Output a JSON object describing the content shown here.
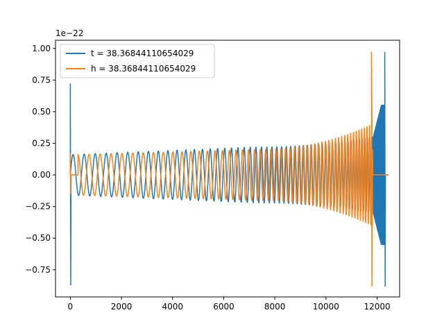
{
  "chart_data": {
    "type": "line",
    "title": "",
    "xlabel": "",
    "ylabel": "",
    "offset_text": "1e−22",
    "xlim": [
      -580,
      12880
    ],
    "ylim": [
      -0.965,
      1.065
    ],
    "x_ticks": [
      0,
      2000,
      4000,
      6000,
      8000,
      10000,
      12000
    ],
    "x_tick_labels": [
      "0",
      "2000",
      "4000",
      "6000",
      "8000",
      "10000",
      "12000"
    ],
    "y_ticks": [
      -0.75,
      -0.5,
      -0.25,
      0.0,
      0.25,
      0.5,
      0.75,
      1.0
    ],
    "y_tick_labels": [
      "−0.75",
      "−0.50",
      "−0.25",
      "0.00",
      "0.25",
      "0.50",
      "0.75",
      "1.00"
    ],
    "grid": false,
    "legend_position": "upper-left",
    "series": [
      {
        "name": "t = 38.36844110654029",
        "color": "#1f77b4",
        "start_spike": {
          "x": 0,
          "min": -0.87,
          "max": 0.72
        },
        "chirp": {
          "x_start": 0,
          "x_end": 11850,
          "amp_start": 0.16,
          "amp_mid": 0.22,
          "amp_end": 0.3
        },
        "ringdown_burst": {
          "x_start": 11850,
          "x_end": 12300,
          "min": -0.88,
          "max": 0.97
        },
        "flat_tail": {
          "x_start": 12300,
          "x_end": 12450,
          "value": 0.0
        }
      },
      {
        "name": "h = 38.36844110654029",
        "color": "#ff7f0e",
        "start_spike": {
          "x": 0,
          "min": -0.15,
          "max": 0.16
        },
        "flat_head": {
          "x_start": 0,
          "x_end": 300,
          "value": 0.0
        },
        "chirp": {
          "x_start": 300,
          "x_end": 11800,
          "amp_start": 0.16,
          "amp_mid": 0.2,
          "amp_end": 0.4
        },
        "merger_peak": {
          "x": 11780,
          "min": -0.88,
          "max": 0.97
        },
        "flat_tail": {
          "x_start": 11850,
          "x_end": 12450,
          "value": 0.0
        }
      }
    ]
  }
}
